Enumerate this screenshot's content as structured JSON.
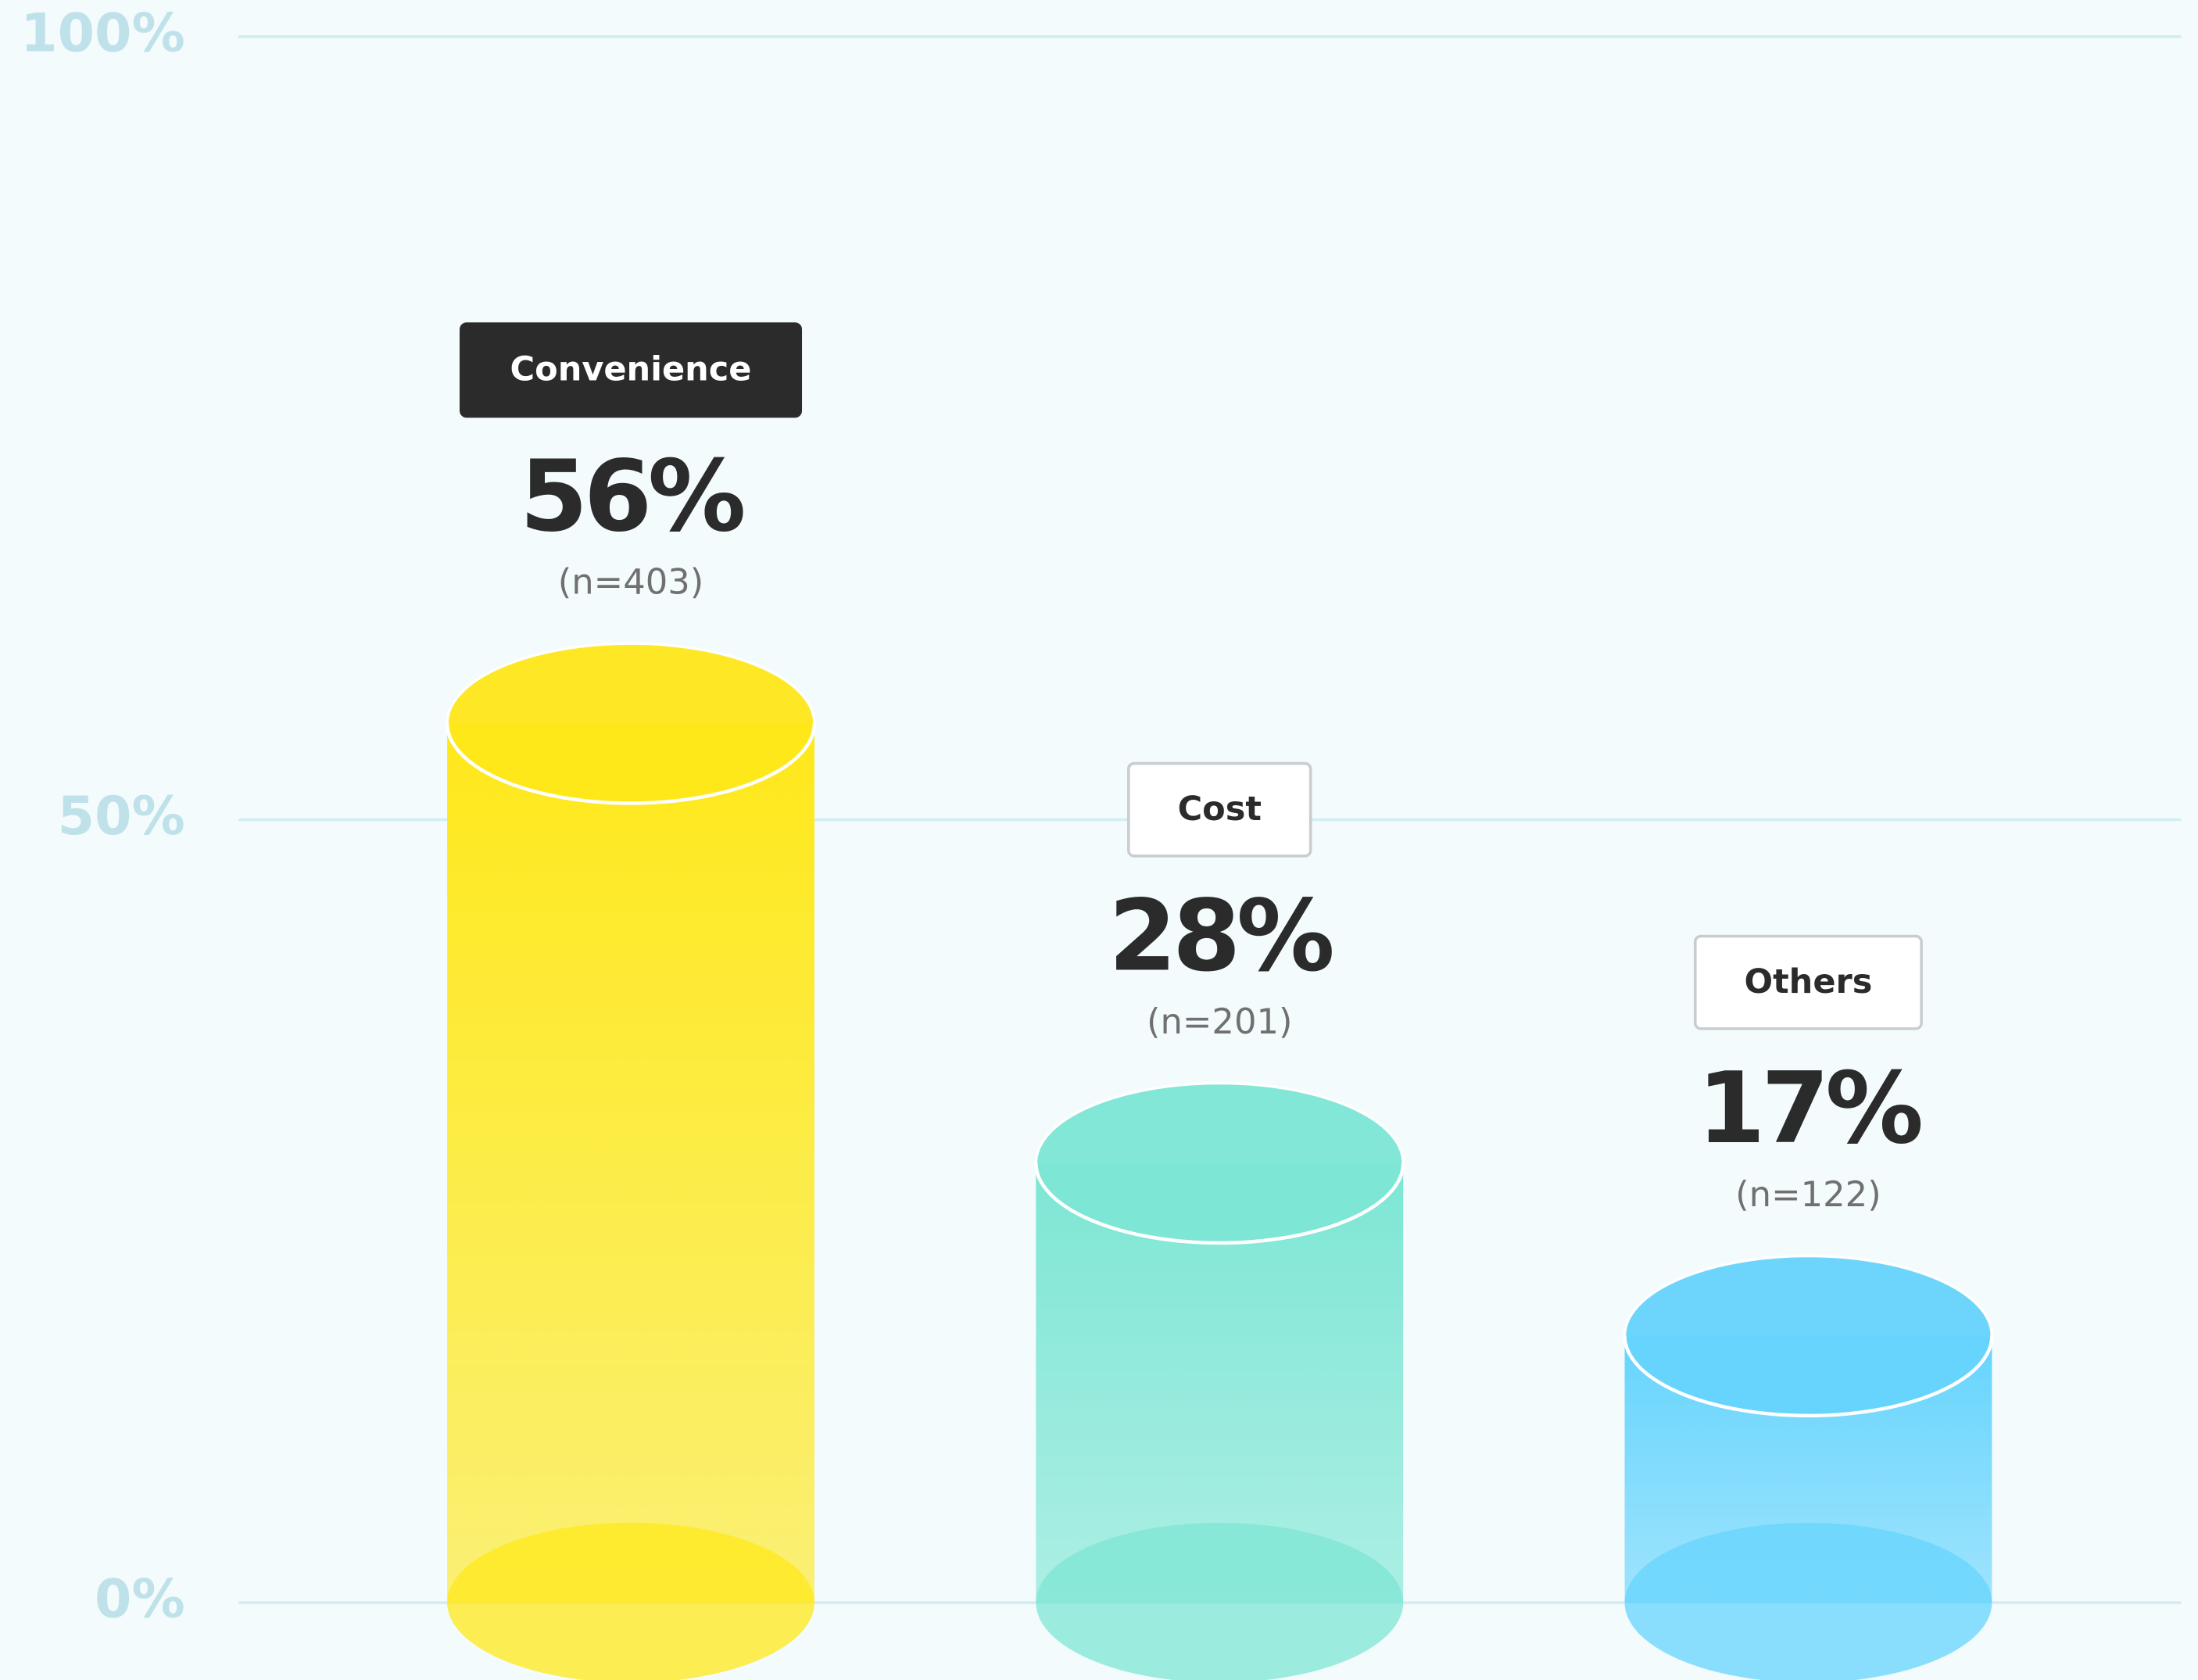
{
  "chart_data": {
    "type": "bar",
    "categories": [
      "Convenience",
      "Cost",
      "Others"
    ],
    "values": [
      56,
      28,
      17
    ],
    "value_labels": [
      "56%",
      "28%",
      "17%"
    ],
    "counts": [
      "(n=403)",
      "(n=201)",
      "(n=122)"
    ],
    "colors": [
      "#ffe81a",
      "#7de6d4",
      "#66d4fd"
    ],
    "highlighted_category": 0,
    "ylim": [
      0,
      100
    ],
    "yticks": [
      {
        "value": 0,
        "label": "0%"
      },
      {
        "value": 50,
        "label": "50%"
      },
      {
        "value": 100,
        "label": "100%"
      }
    ],
    "grid": true
  }
}
